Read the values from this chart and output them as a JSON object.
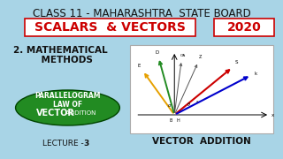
{
  "bg_color": "#a8d4e6",
  "title_text": "CLASS 11 - MAHARASHTRA  STATE BOARD",
  "title_color": "#111111",
  "title_fontsize": 8.5,
  "scalars_text": "SCALARS  & VECTORS",
  "scalars_color": "#cc0000",
  "scalars_fontsize": 10,
  "year_text": "2020",
  "year_color": "#cc0000",
  "year_fontsize": 10,
  "math_line1": "2. MATHEMATICAL",
  "math_line2": "    METHODS",
  "math_color": "#111111",
  "math_fontsize": 7.5,
  "ellipse_color": "#228B22",
  "ellipse_edge_color": "#004400",
  "ellipse_text1": "PARALLELOGRAM",
  "ellipse_text2": "LAW OF",
  "ellipse_text3_bold": "VECTOR",
  "ellipse_text3_normal": " ADDITION",
  "ellipse_text_color": "#ffffff",
  "ellipse_fontsize": 5.5,
  "ellipse_vector_fontsize": 7.0,
  "ellipse_addition_fontsize": 5.0,
  "lecture_text": "LECTURE - ",
  "lecture_bold": "3",
  "lecture_color": "#111111",
  "lecture_fontsize": 6.5,
  "vector_addition_text": "VECTOR  ADDITION",
  "vector_addition_color": "#111111",
  "vector_addition_fontsize": 7.5,
  "box_rect_color": "#cc0000",
  "diagram_border": "#aaaaaa",
  "diagram_bg": "#ffffff"
}
